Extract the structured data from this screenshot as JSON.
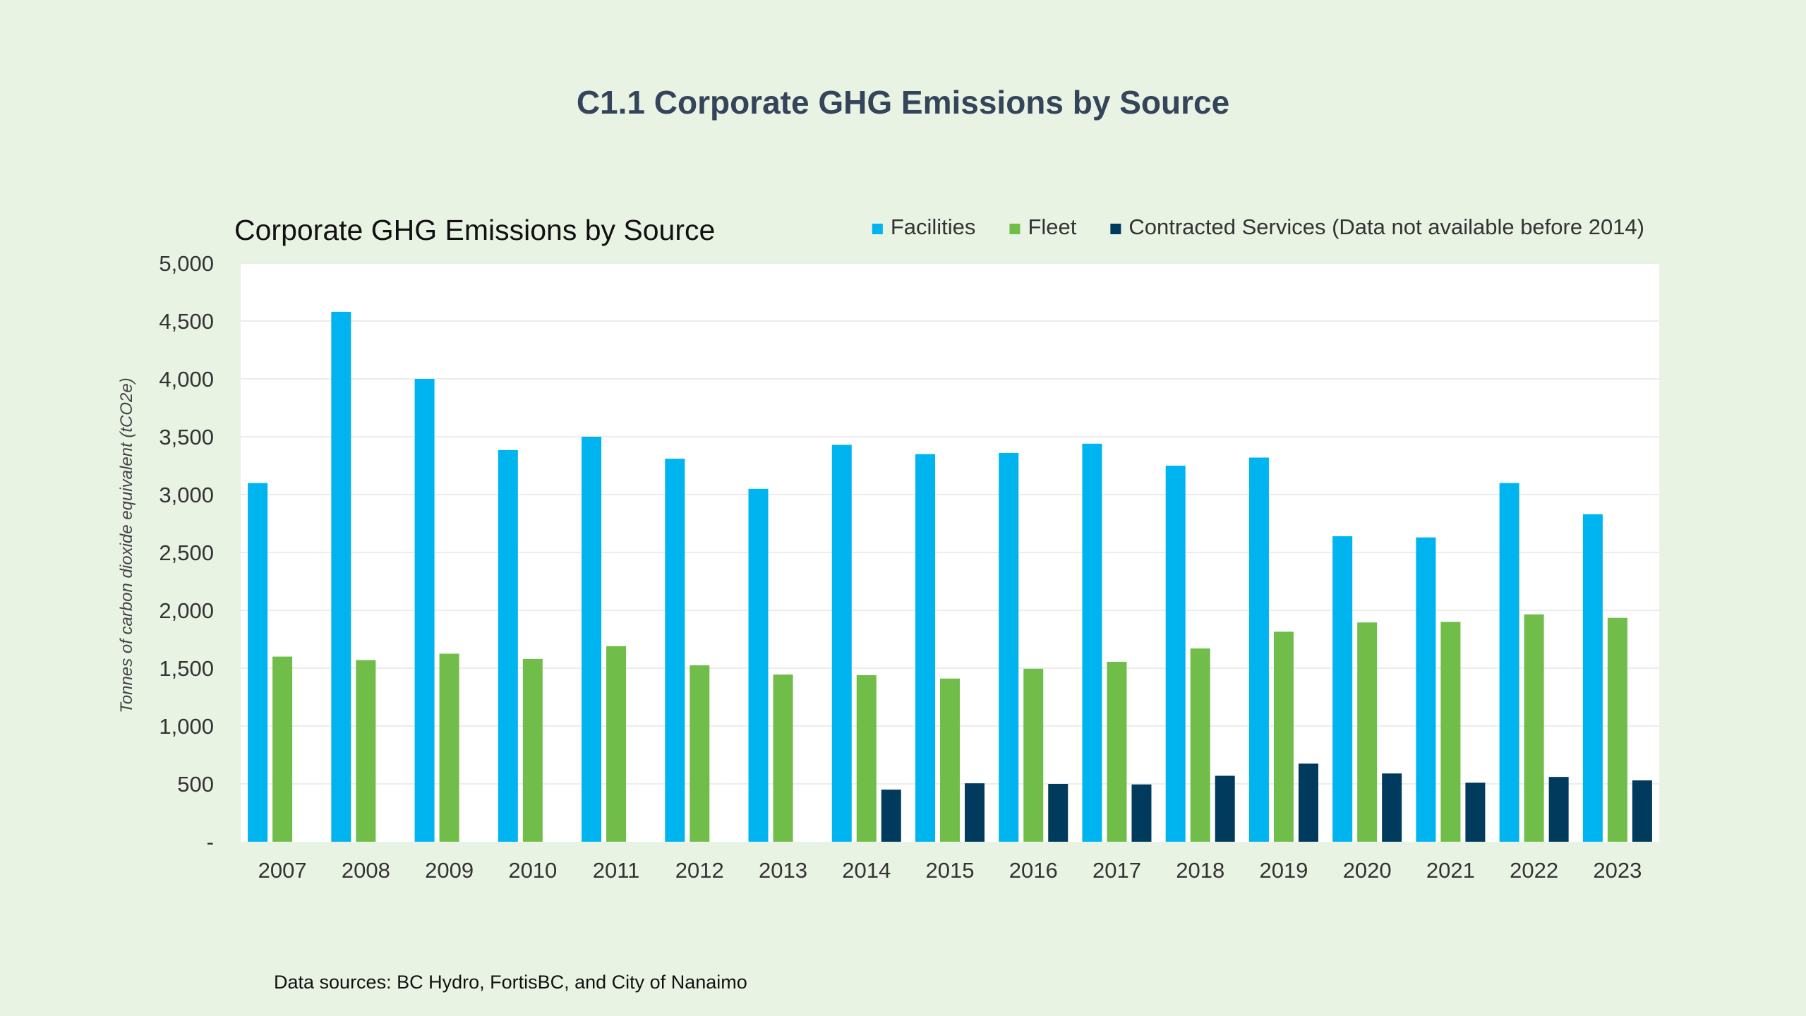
{
  "page": {
    "title": "C1.1 Corporate GHG Emissions by Source",
    "footer": "Data sources: BC Hydro, FortisBC, and City of Nanaimo"
  },
  "chart_data": {
    "type": "bar",
    "title": "Corporate GHG Emissions by Source",
    "xlabel": "",
    "ylabel": "Tonnes of carbon dioxide equivalent (tCO2e)",
    "ylim": [
      0,
      5000
    ],
    "yticks": [
      0,
      500,
      1000,
      1500,
      2000,
      2500,
      3000,
      3500,
      4000,
      4500,
      5000
    ],
    "ytick_labels": [
      "-",
      "500",
      "1,000",
      "1,500",
      "2,000",
      "2,500",
      "3,000",
      "3,500",
      "4,000",
      "4,500",
      "5,000"
    ],
    "grid": true,
    "legend_position": "top-right",
    "categories": [
      "2007",
      "2008",
      "2009",
      "2010",
      "2011",
      "2012",
      "2013",
      "2014",
      "2015",
      "2016",
      "2017",
      "2018",
      "2019",
      "2020",
      "2021",
      "2022",
      "2023"
    ],
    "series": [
      {
        "name": "Facilities",
        "color": "#00b4ef",
        "values": [
          3100,
          4580,
          4000,
          3385,
          3500,
          3310,
          3050,
          3430,
          3350,
          3360,
          3440,
          3250,
          3320,
          2640,
          2630,
          3100,
          2830
        ]
      },
      {
        "name": "Fleet",
        "color": "#70bd4a",
        "values": [
          1600,
          1570,
          1625,
          1580,
          1690,
          1525,
          1445,
          1440,
          1410,
          1495,
          1555,
          1670,
          1815,
          1895,
          1900,
          1965,
          1935
        ]
      },
      {
        "name": "Contracted Services (Data not available before 2014)",
        "color": "#003a5d",
        "values": [
          null,
          null,
          null,
          null,
          null,
          null,
          null,
          450,
          505,
          500,
          495,
          570,
          675,
          590,
          510,
          560,
          530
        ]
      }
    ]
  }
}
